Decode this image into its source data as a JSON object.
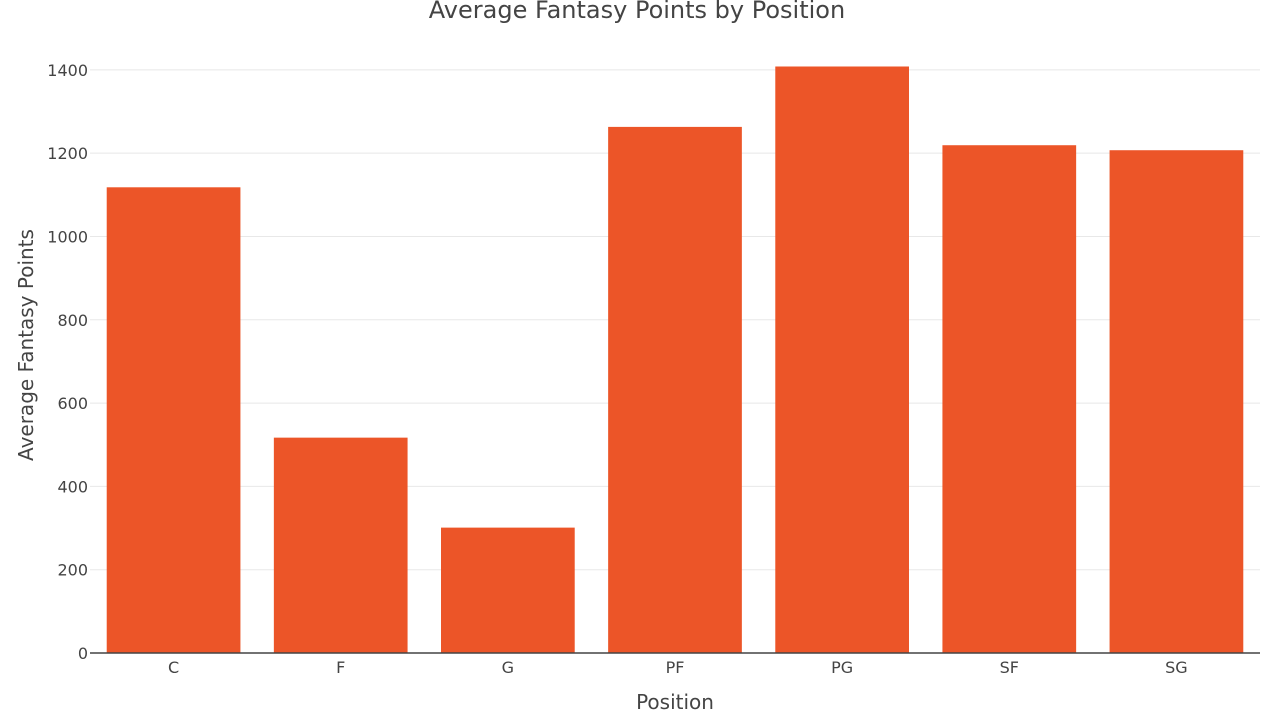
{
  "chart_data": {
    "type": "bar",
    "title": "Average Fantasy Points by Position",
    "xlabel": "Position",
    "ylabel": "Average Fantasy Points",
    "categories": [
      "C",
      "F",
      "G",
      "PF",
      "PG",
      "SF",
      "SG"
    ],
    "values": [
      1118,
      517,
      301,
      1263,
      1408,
      1219,
      1207
    ],
    "ylim": [
      0,
      1450
    ],
    "yticks": [
      0,
      200,
      400,
      600,
      800,
      1000,
      1200,
      1400
    ],
    "grid": true,
    "bar_color": "#ec5528",
    "legend": "none"
  }
}
